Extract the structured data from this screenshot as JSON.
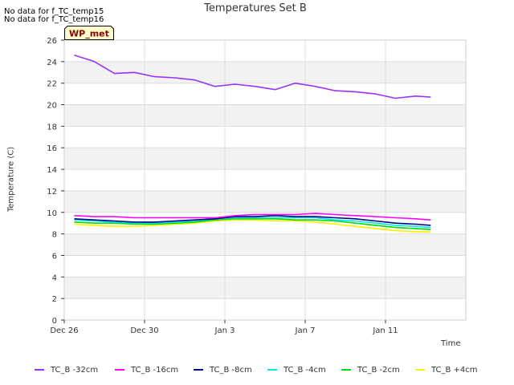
{
  "nodata_messages": [
    "No data for f_TC_temp15",
    "No data for f_TC_temp16"
  ],
  "badge_label": "WP_met",
  "colors": {
    "band": "#f2f2f2",
    "grid": "#dddddd",
    "badge_fill": "#ffffcc",
    "badge_text": "#8b0000"
  },
  "chart_data": {
    "type": "line",
    "title": "Temperatures Set B",
    "xlabel": "Time",
    "ylabel": "Temperature (C)",
    "xlim": [
      "2023-12-26",
      "2024-01-15"
    ],
    "ylim": [
      0,
      26
    ],
    "grid": true,
    "legend_position": "bottom",
    "x_ticks": [
      {
        "label": "Dec 26",
        "date": "2023-12-26"
      },
      {
        "label": "Dec 30",
        "date": "2023-12-30"
      },
      {
        "label": "Jan 3",
        "date": "2024-01-03"
      },
      {
        "label": "Jan 7",
        "date": "2024-01-07"
      },
      {
        "label": "Jan 11",
        "date": "2024-01-11"
      }
    ],
    "y_ticks": [
      0,
      2,
      4,
      6,
      8,
      10,
      12,
      14,
      16,
      18,
      20,
      22,
      24,
      26
    ],
    "x": [
      "2023-12-26 12:00",
      "2023-12-27 12:00",
      "2023-12-28 12:00",
      "2023-12-29 12:00",
      "2023-12-30 12:00",
      "2023-12-31 12:00",
      "2024-01-01 12:00",
      "2024-01-02 12:00",
      "2024-01-03 12:00",
      "2024-01-04 12:00",
      "2024-01-05 12:00",
      "2024-01-06 12:00",
      "2024-01-07 12:00",
      "2024-01-08 12:00",
      "2024-01-09 12:00",
      "2024-01-10 12:00",
      "2024-01-11 12:00",
      "2024-01-12 12:00",
      "2024-01-13 06:00"
    ],
    "series": [
      {
        "name": "TC_B -32cm",
        "color": "#9b30ff",
        "values": [
          24.6,
          24.0,
          22.9,
          23.0,
          22.6,
          22.5,
          22.3,
          21.7,
          21.9,
          21.7,
          21.4,
          22.0,
          21.7,
          21.3,
          21.2,
          21.0,
          20.6,
          20.8,
          20.7
        ]
      },
      {
        "name": "TC_B -16cm",
        "color": "#ff00ff",
        "values": [
          9.7,
          9.6,
          9.6,
          9.5,
          9.5,
          9.5,
          9.5,
          9.5,
          9.7,
          9.8,
          9.8,
          9.8,
          9.9,
          9.8,
          9.7,
          9.6,
          9.5,
          9.4,
          9.3
        ]
      },
      {
        "name": "TC_B -8cm",
        "color": "#00008b",
        "values": [
          9.4,
          9.3,
          9.2,
          9.1,
          9.1,
          9.2,
          9.3,
          9.4,
          9.6,
          9.6,
          9.7,
          9.6,
          9.6,
          9.5,
          9.4,
          9.2,
          9.0,
          8.9,
          8.8
        ]
      },
      {
        "name": "TC_B -4cm",
        "color": "#00e5ee",
        "values": [
          9.3,
          9.2,
          9.1,
          9.0,
          9.0,
          9.1,
          9.2,
          9.4,
          9.5,
          9.5,
          9.5,
          9.5,
          9.5,
          9.3,
          9.2,
          9.0,
          8.8,
          8.7,
          8.6
        ]
      },
      {
        "name": "TC_B -2cm",
        "color": "#00dd00",
        "values": [
          9.1,
          9.0,
          9.0,
          8.9,
          8.9,
          9.0,
          9.1,
          9.3,
          9.4,
          9.4,
          9.4,
          9.3,
          9.3,
          9.2,
          9.0,
          8.8,
          8.6,
          8.5,
          8.4
        ]
      },
      {
        "name": "TC_B +4cm",
        "color": "#ffee00",
        "values": [
          8.9,
          8.8,
          8.7,
          8.7,
          8.8,
          8.9,
          9.0,
          9.2,
          9.3,
          9.3,
          9.2,
          9.2,
          9.1,
          8.9,
          8.7,
          8.5,
          8.3,
          8.2,
          8.2
        ]
      }
    ]
  }
}
